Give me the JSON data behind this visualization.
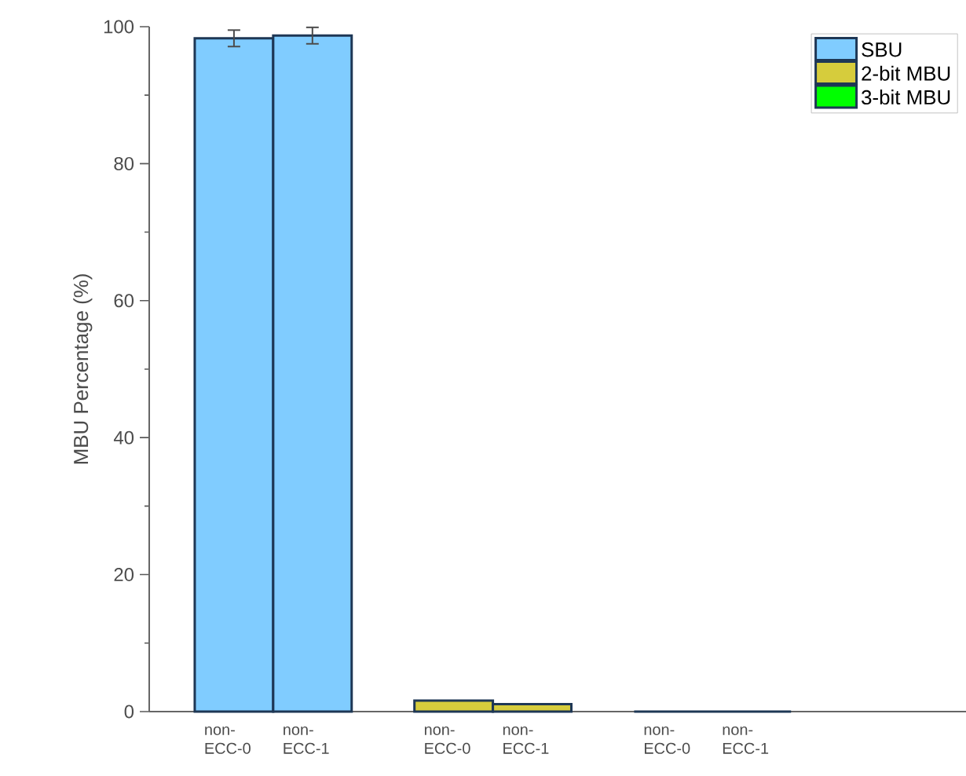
{
  "chart_data": {
    "type": "bar",
    "ylabel": "MBU Percentage (%)",
    "categories": [
      "non- ECC-0",
      "non- ECC-1",
      "non- ECC-0",
      "non- ECC-1",
      "non- ECC-0",
      "non- ECC-1"
    ],
    "series": [
      {
        "name": "SBU",
        "color": "#80ccff",
        "values": [
          98.3,
          98.7,
          null,
          null,
          null,
          null
        ],
        "errors": [
          1.2,
          1.2,
          null,
          null,
          null,
          null
        ]
      },
      {
        "name": "2-bit MBU",
        "color": "#d6cc3c",
        "values": [
          null,
          null,
          1.6,
          1.1,
          null,
          null
        ]
      },
      {
        "name": "3-bit MBU",
        "color": "#00ff00",
        "values": [
          null,
          null,
          null,
          null,
          0,
          0
        ]
      }
    ],
    "ylim": [
      0,
      100
    ],
    "yticks": [
      0,
      20,
      40,
      60,
      80,
      100
    ],
    "legend": "top right"
  }
}
